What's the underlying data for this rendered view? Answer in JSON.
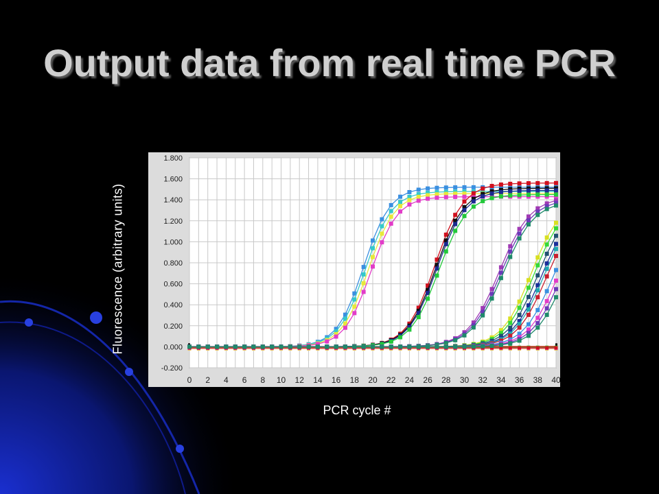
{
  "slide": {
    "title": "Output data from real time PCR"
  },
  "colors": {
    "background": "#000000",
    "decor_blue": "#1630c8",
    "plot_bg": "#ffffff",
    "frame_bg": "#dcdcdc",
    "grid": "#c8c8c8",
    "threshold": "#d10000"
  },
  "chart_data": {
    "type": "line",
    "title": "",
    "xlabel": "PCR cycle #",
    "ylabel": "Fluorescence (arbitrary units)",
    "xlim": [
      0,
      40
    ],
    "ylim": [
      -0.2,
      1.8
    ],
    "x_ticks": [
      "0",
      "2",
      "4",
      "6",
      "8",
      "10",
      "12",
      "14",
      "16",
      "18",
      "20",
      "22",
      "24",
      "26",
      "28",
      "30",
      "32",
      "34",
      "36",
      "38",
      "40"
    ],
    "y_ticks": [
      "1.800",
      "1.600",
      "1.400",
      "1.200",
      "1.000",
      "0.800",
      "0.600",
      "0.400",
      "0.200",
      "0.000",
      "-0.200"
    ],
    "y_tick_values": [
      1.8,
      1.6,
      1.4,
      1.2,
      1.0,
      0.8,
      0.6,
      0.4,
      0.2,
      0.0,
      -0.2
    ],
    "grid": true,
    "legend": "none",
    "threshold": 0.0,
    "series": [
      {
        "color": "#3a8fe0",
        "midpoint": 19.0,
        "plateau": 1.52,
        "slope": 1.45
      },
      {
        "color": "#35c9c9",
        "midpoint": 19.2,
        "plateau": 1.48,
        "slope": 1.45
      },
      {
        "color": "#e8e83a",
        "midpoint": 19.5,
        "plateau": 1.46,
        "slope": 1.45
      },
      {
        "color": "#e23cc8",
        "midpoint": 19.8,
        "plateau": 1.43,
        "slope": 1.45
      },
      {
        "color": "#d0101e",
        "midpoint": 26.8,
        "plateau": 1.56,
        "slope": 1.55
      },
      {
        "color": "#101010",
        "midpoint": 26.9,
        "plateau": 1.51,
        "slope": 1.55
      },
      {
        "color": "#1a2a90",
        "midpoint": 27.0,
        "plateau": 1.49,
        "slope": 1.55
      },
      {
        "color": "#22c83a",
        "midpoint": 27.2,
        "plateau": 1.45,
        "slope": 1.55
      },
      {
        "color": "#a03ab4",
        "midpoint": 33.8,
        "plateau": 1.43,
        "slope": 1.7
      },
      {
        "color": "#6a3ab8",
        "midpoint": 34.0,
        "plateau": 1.41,
        "slope": 1.7
      },
      {
        "color": "#1e8a6a",
        "midpoint": 34.2,
        "plateau": 1.39,
        "slope": 1.7
      },
      {
        "color": "#d8e020",
        "midpoint": 37.3,
        "plateau": 1.4,
        "slope": 1.6
      },
      {
        "color": "#36d836",
        "midpoint": 37.6,
        "plateau": 1.38,
        "slope": 1.6
      },
      {
        "color": "#205070",
        "midpoint": 38.0,
        "plateau": 1.36,
        "slope": 1.6
      },
      {
        "color": "#1a2e9a",
        "midpoint": 38.4,
        "plateau": 1.34,
        "slope": 1.6
      },
      {
        "color": "#20a8b0",
        "midpoint": 38.6,
        "plateau": 1.32,
        "slope": 1.6
      },
      {
        "color": "#c81e2e",
        "midpoint": 38.9,
        "plateau": 1.3,
        "slope": 1.6
      },
      {
        "color": "#3a8fe0",
        "midpoint": 39.6,
        "plateau": 1.3,
        "slope": 1.6
      },
      {
        "color": "#e23cc8",
        "midpoint": 40.1,
        "plateau": 1.3,
        "slope": 1.6
      },
      {
        "color": "#6a3ab8",
        "midpoint": 40.5,
        "plateau": 1.3,
        "slope": 1.6
      },
      {
        "color": "#1e8a6a",
        "midpoint": 40.9,
        "plateau": 1.3,
        "slope": 1.6
      }
    ],
    "baseline_series": [
      {
        "color": "#e8e83a",
        "level": -0.02
      },
      {
        "color": "#e23cc8",
        "level": -0.015
      },
      {
        "color": "#36d836",
        "level": -0.005
      },
      {
        "color": "#d0101e",
        "level": -0.01
      }
    ]
  }
}
